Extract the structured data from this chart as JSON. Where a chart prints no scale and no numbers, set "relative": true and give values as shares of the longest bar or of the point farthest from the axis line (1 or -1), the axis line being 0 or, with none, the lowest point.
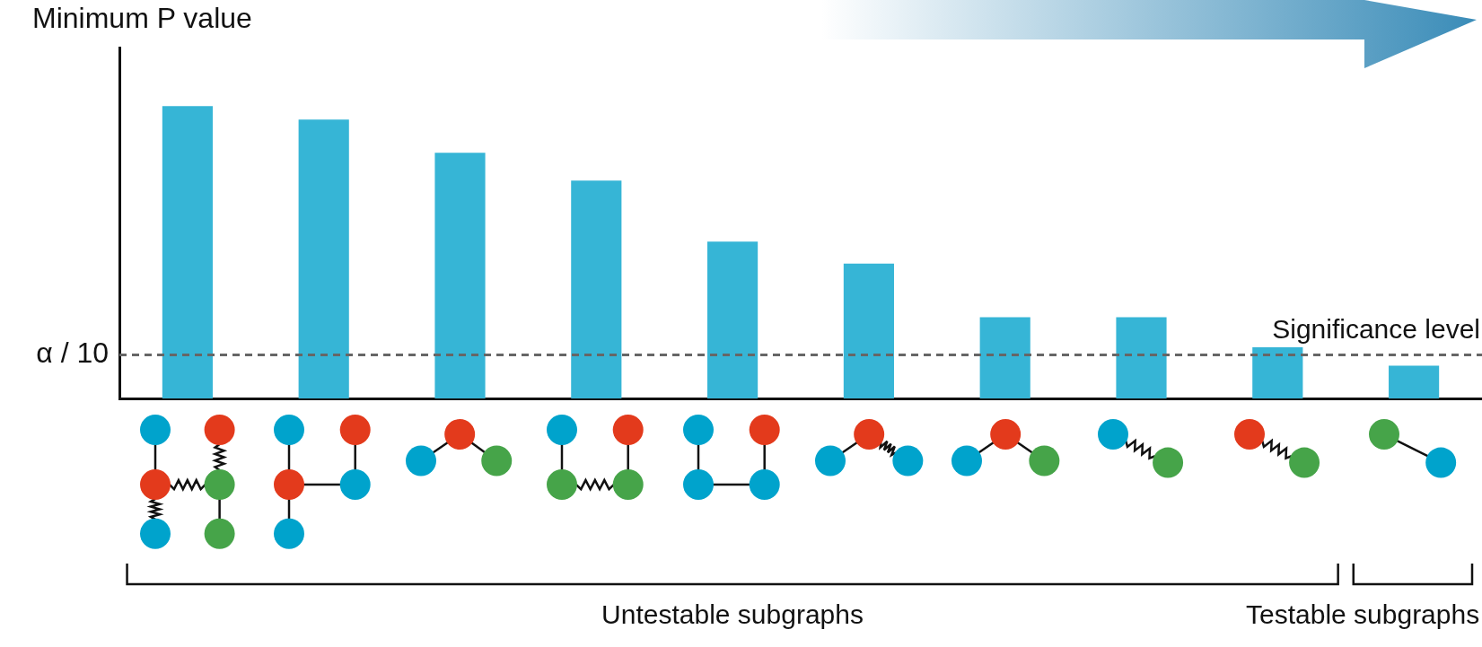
{
  "chart_data": {
    "type": "bar",
    "ylabel": "Minimum P value",
    "categories": [
      null,
      null,
      null,
      null,
      null,
      null,
      null,
      null,
      null,
      null
    ],
    "values": [
      1,
      0.954,
      0.84,
      0.745,
      0.536,
      0.461,
      0.278,
      0.278,
      0.175,
      0.112
    ],
    "color": "#36b5d6",
    "relative": true,
    "grid": false,
    "legend": false,
    "ref_lines": [
      {
        "axis": "y",
        "value": 0.149,
        "label": "α / 10",
        "color": "#666666",
        "line_style": "dashed"
      }
    ],
    "annotations": [
      "Significance level",
      "Untestable subgraphs",
      "Testable subgraphs"
    ]
  }
}
